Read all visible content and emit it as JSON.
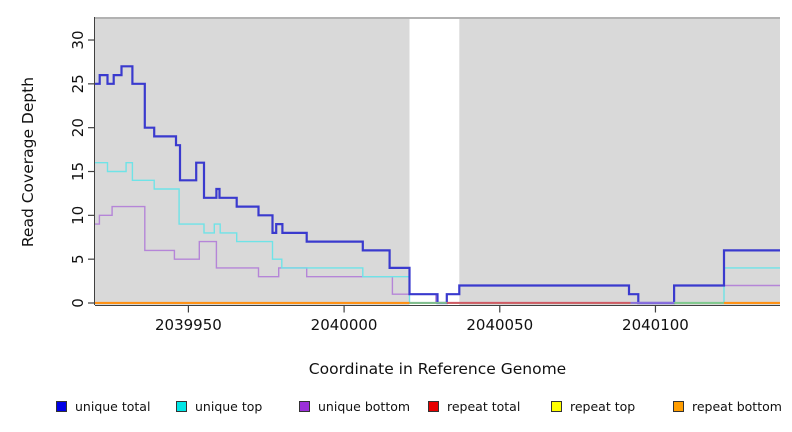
{
  "chart_data": {
    "type": "line",
    "subtype": "step",
    "title": "",
    "xlabel": "Coordinate in Reference Genome",
    "ylabel": "Read Coverage Depth",
    "xlim": [
      2039920,
      2040140
    ],
    "ylim": [
      0,
      31
    ],
    "x_ticks": [
      2039950,
      2040000,
      2040050,
      2040100
    ],
    "x_tick_labels": [
      "2039950",
      "2040000",
      "2040050",
      "2040100"
    ],
    "y_ticks": [
      0,
      5,
      10,
      15,
      20,
      25,
      30
    ],
    "y_tick_labels": [
      "0",
      "5",
      "10",
      "15",
      "20",
      "25",
      "30"
    ],
    "grid": false,
    "plot_bg_color": "#d9d9d9",
    "gap_band": {
      "x0": 2040021,
      "x1": 2040037,
      "color": "#ffffff"
    },
    "top_border_color": "#9b9b9b",
    "axis_color": "#404040",
    "series": [
      {
        "name": "repeat total",
        "color": "#e03333",
        "width": 1.4,
        "steps": [
          [
            2039920,
            0
          ],
          [
            2040140,
            0
          ]
        ]
      },
      {
        "name": "repeat top",
        "color": "#f5f500",
        "width": 1.4,
        "steps": [
          [
            2039920,
            0
          ],
          [
            2040140,
            0
          ]
        ]
      },
      {
        "name": "repeat bottom",
        "color": "#ff9015",
        "width": 1.4,
        "steps": [
          [
            2039920,
            0
          ],
          [
            2040140,
            0
          ]
        ]
      },
      {
        "name": "unique bottom",
        "color": "#b585d8",
        "width": 1.4,
        "steps": [
          [
            2039920,
            9
          ],
          [
            2039921.4,
            10
          ],
          [
            2039925.5,
            11
          ],
          [
            2039936,
            6
          ],
          [
            2039945.5,
            5
          ],
          [
            2039953.5,
            7
          ],
          [
            2039959,
            4
          ],
          [
            2039972.5,
            3
          ],
          [
            2039979,
            4
          ],
          [
            2039988,
            3
          ],
          [
            2040015.5,
            1
          ],
          [
            2040029.5,
            0
          ],
          [
            2040033,
            1
          ],
          [
            2040037,
            2
          ],
          [
            2040091.5,
            1
          ],
          [
            2040094.5,
            0
          ],
          [
            2040106,
            2
          ],
          [
            2040140,
            2
          ]
        ]
      },
      {
        "name": "unique top",
        "color": "#6fe3e7",
        "width": 1.4,
        "steps": [
          [
            2039920,
            16
          ],
          [
            2039924,
            15
          ],
          [
            2039930,
            16
          ],
          [
            2039932,
            14
          ],
          [
            2039939,
            13
          ],
          [
            2039947,
            9
          ],
          [
            2039955,
            8
          ],
          [
            2039958.3,
            9
          ],
          [
            2039960.2,
            8
          ],
          [
            2039965.5,
            7
          ],
          [
            2039977,
            5
          ],
          [
            2039980,
            4
          ],
          [
            2040006,
            3
          ],
          [
            2040021,
            0
          ],
          [
            2040122,
            4
          ],
          [
            2040140,
            4
          ]
        ]
      },
      {
        "name": "unique total",
        "color": "#3a3ace",
        "width": 2.2,
        "steps": [
          [
            2039920,
            25
          ],
          [
            2039921.5,
            26
          ],
          [
            2039924,
            25
          ],
          [
            2039926,
            26
          ],
          [
            2039928.5,
            27
          ],
          [
            2039932,
            25
          ],
          [
            2039936,
            20
          ],
          [
            2039939,
            19
          ],
          [
            2039946,
            18
          ],
          [
            2039947.3,
            14
          ],
          [
            2039952.5,
            16
          ],
          [
            2039955,
            12
          ],
          [
            2039959,
            13
          ],
          [
            2039960,
            12
          ],
          [
            2039965.5,
            11
          ],
          [
            2039972.5,
            10
          ],
          [
            2039977,
            8
          ],
          [
            2039978.2,
            9
          ],
          [
            2039980.2,
            8
          ],
          [
            2039988,
            7
          ],
          [
            2040006,
            6
          ],
          [
            2040014.6,
            4
          ],
          [
            2040021,
            1
          ],
          [
            2040030,
            0
          ],
          [
            2040033,
            1
          ],
          [
            2040037,
            2
          ],
          [
            2040091.5,
            1
          ],
          [
            2040094.5,
            0
          ],
          [
            2040106,
            2
          ],
          [
            2040122,
            6
          ],
          [
            2040140,
            6
          ]
        ]
      }
    ],
    "baseline_overlays": [
      {
        "x0": 2039920,
        "x1": 2040021,
        "color": "#ff9015"
      },
      {
        "x0": 2040021,
        "x1": 2040033,
        "color": "#7fbe8f"
      },
      {
        "x0": 2040033,
        "x1": 2040092,
        "color": "#cf5a66"
      },
      {
        "x0": 2040092,
        "x1": 2040106,
        "color": "#8a70dd"
      },
      {
        "x0": 2040106,
        "x1": 2040122,
        "color": "#7fc98f"
      },
      {
        "x0": 2040122,
        "x1": 2040140,
        "color": "#ff9015"
      }
    ]
  },
  "legend": {
    "items": [
      {
        "label": "unique total",
        "color": "#0000e6"
      },
      {
        "label": "unique top",
        "color": "#00e6e6"
      },
      {
        "label": "unique bottom",
        "color": "#9b30d9"
      },
      {
        "label": "repeat total",
        "color": "#e60000"
      },
      {
        "label": "repeat top",
        "color": "#ffff00"
      },
      {
        "label": "repeat bottom",
        "color": "#ff9d00"
      }
    ]
  }
}
